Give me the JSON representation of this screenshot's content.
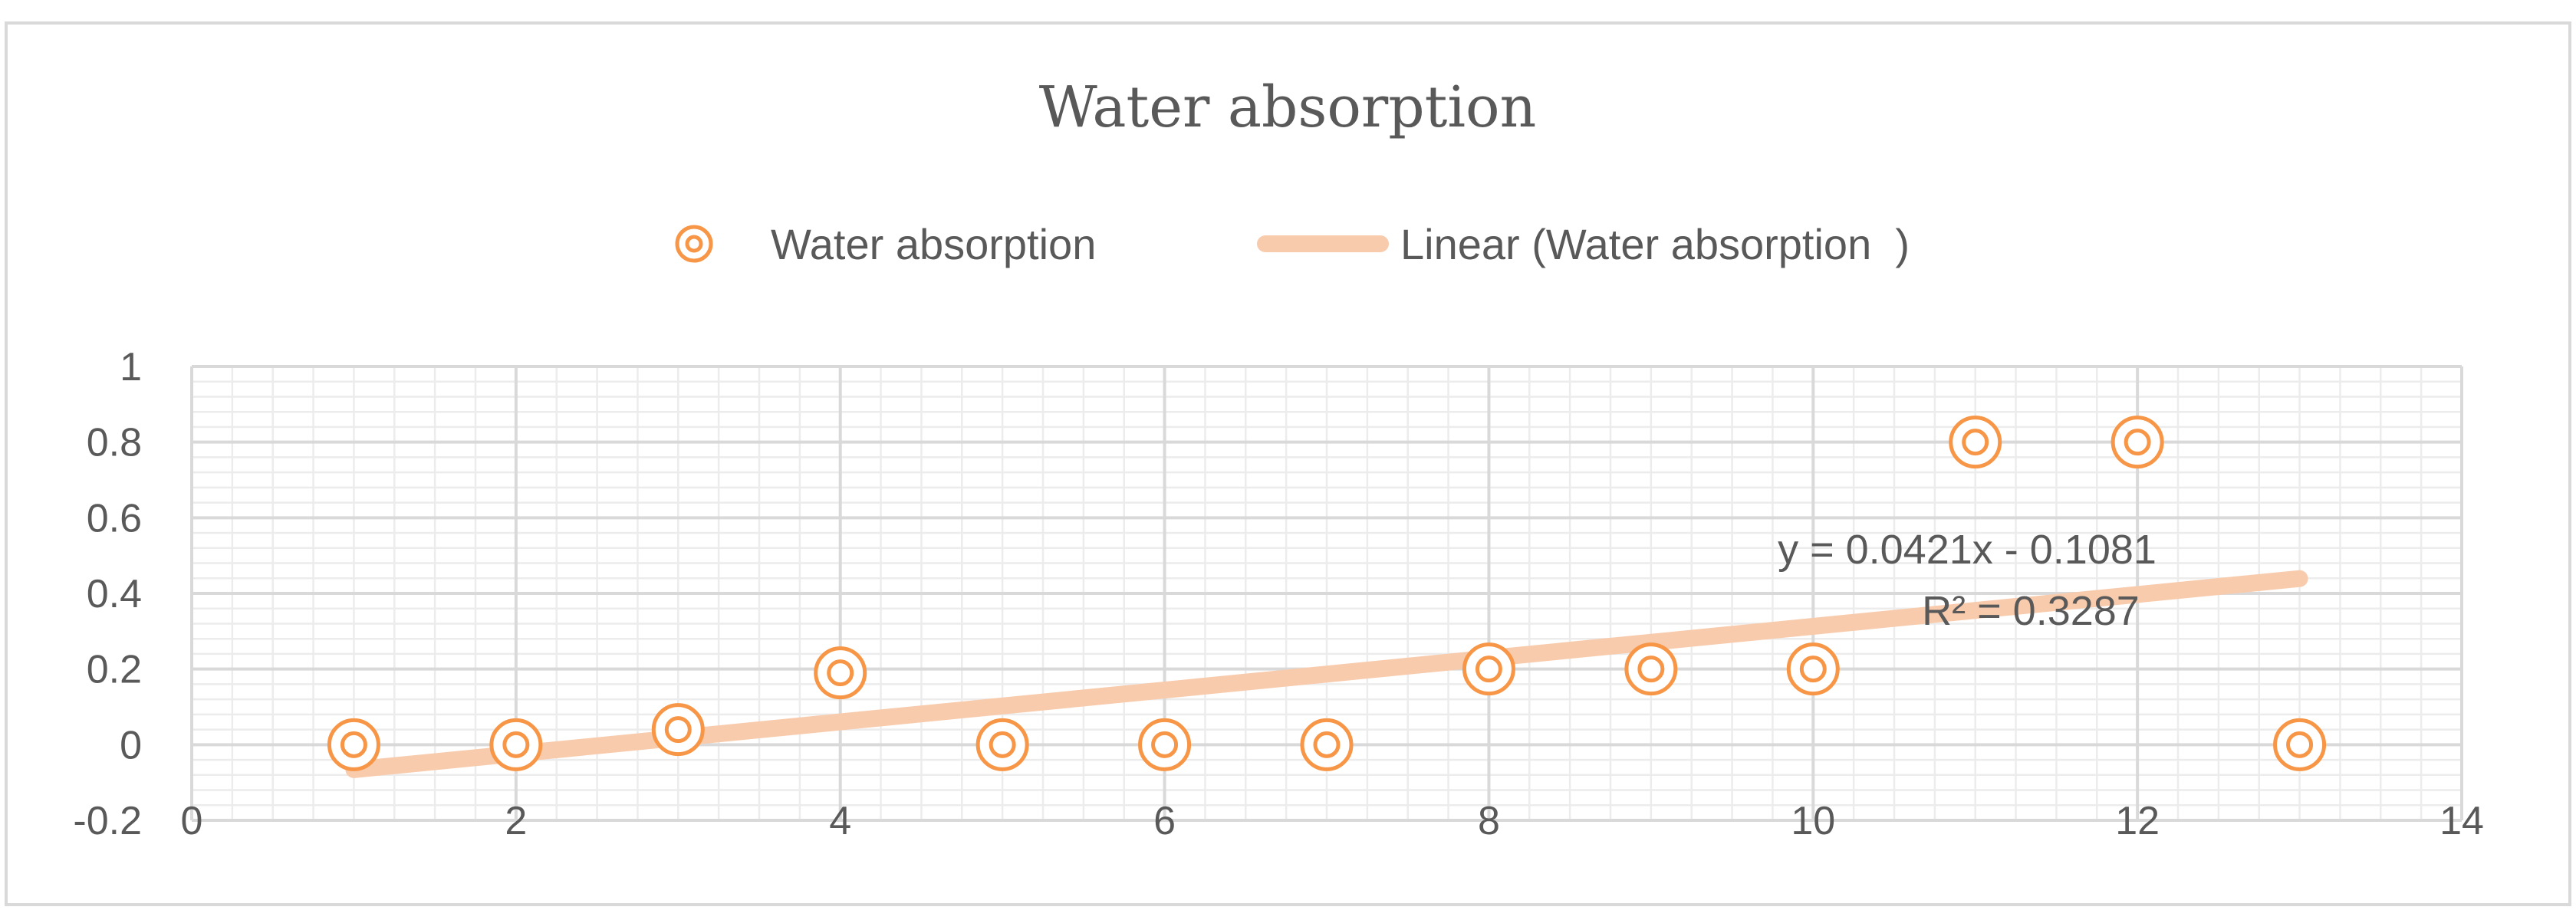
{
  "chart_data": {
    "type": "scatter",
    "title": "Water absorption",
    "xlim": [
      0,
      14
    ],
    "ylim": [
      -0.2,
      1
    ],
    "x_ticks": [
      0,
      2,
      4,
      6,
      8,
      10,
      12,
      14
    ],
    "y_ticks": [
      -0.2,
      0,
      0.2,
      0.4,
      0.6,
      0.8,
      1
    ],
    "y_tick_labels": [
      "-0.2",
      "0",
      "0.2",
      "0.4",
      "0.6",
      "0.8",
      "1"
    ],
    "grid": true,
    "minor_grid": true,
    "legend_position": "top",
    "series": [
      {
        "name": "Water absorption",
        "type": "scatter",
        "color": "#f79646",
        "x": [
          1,
          2,
          3,
          4,
          5,
          6,
          7,
          8,
          9,
          10,
          11,
          12,
          13
        ],
        "y": [
          0,
          0,
          0.04,
          0.19,
          0,
          0,
          0,
          0.2,
          0.2,
          0.2,
          0.8,
          0.8,
          0
        ]
      }
    ],
    "trendline": {
      "name": "Linear (Water absorption  )",
      "type": "linear",
      "color": "#f8cbad",
      "slope": 0.0421,
      "intercept": -0.1081,
      "x_range": [
        1,
        13
      ],
      "equation_label": "y = 0.0421x - 0.1081",
      "r2_label": "R² = 0.3287"
    }
  }
}
